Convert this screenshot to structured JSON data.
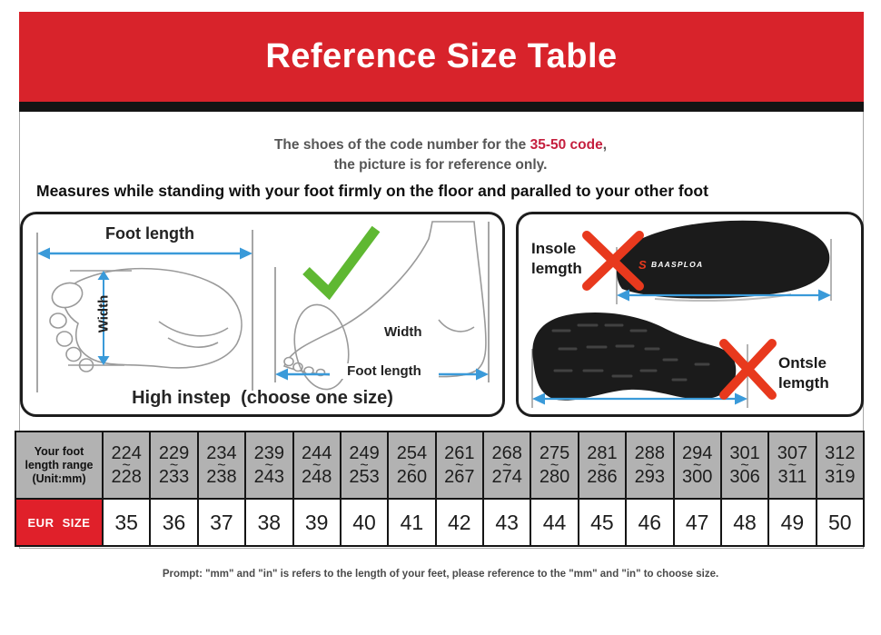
{
  "banner": {
    "title": "Reference Size Table"
  },
  "intro": {
    "line1_prefix": "The shoes of the code number for the ",
    "line1_highlight": "35-50 code",
    "line1_suffix": ",",
    "line2": "the picture is for reference only.",
    "instruction": "Measures while standing with your foot firmly on the floor and paralled to your other foot"
  },
  "measure_box": {
    "top_arrow_label": "Foot length",
    "width_label": "Width",
    "side_width_label": "Width",
    "side_arrow_label": "Foot length",
    "caption": "High instep  (choose one size)"
  },
  "wrong_box": {
    "insole_label_line1": "Insole",
    "insole_label_line2": "lemgth",
    "brand_icon_glyph": "S",
    "brand": "BAASPLOA",
    "outsole_label_line1": "Ontsle",
    "outsole_label_line2": "lemgth"
  },
  "size_table": {
    "header": {
      "line1": "Your foot",
      "line2": "length range",
      "line3": "(Unit:mm)"
    },
    "row_label": "EUR SIZE",
    "separator": "~",
    "columns": [
      {
        "min": "224",
        "max": "228",
        "eur": "35"
      },
      {
        "min": "229",
        "max": "233",
        "eur": "36"
      },
      {
        "min": "234",
        "max": "238",
        "eur": "37"
      },
      {
        "min": "239",
        "max": "243",
        "eur": "38"
      },
      {
        "min": "244",
        "max": "248",
        "eur": "39"
      },
      {
        "min": "249",
        "max": "253",
        "eur": "40"
      },
      {
        "min": "254",
        "max": "260",
        "eur": "41"
      },
      {
        "min": "261",
        "max": "267",
        "eur": "42"
      },
      {
        "min": "268",
        "max": "274",
        "eur": "43"
      },
      {
        "min": "275",
        "max": "280",
        "eur": "44"
      },
      {
        "min": "281",
        "max": "286",
        "eur": "45"
      },
      {
        "min": "288",
        "max": "293",
        "eur": "46"
      },
      {
        "min": "294",
        "max": "300",
        "eur": "47"
      },
      {
        "min": "301",
        "max": "306",
        "eur": "48"
      },
      {
        "min": "307",
        "max": "311",
        "eur": "49"
      },
      {
        "min": "312",
        "max": "319",
        "eur": "50"
      }
    ]
  },
  "footer": {
    "note": "Prompt: \"mm\" and \"in\" is refers to the length of your feet, please reference to the \"mm\" and \"in\" to choose size."
  },
  "colors": {
    "banner_red": "#d8232b",
    "eur_red": "#e0202a",
    "highlight_red": "#c51f3e",
    "cross_red": "#e8391d",
    "arrow_blue": "#3a9ad9",
    "check_green": "#5fb832",
    "header_gray": "#b2b2b2"
  }
}
